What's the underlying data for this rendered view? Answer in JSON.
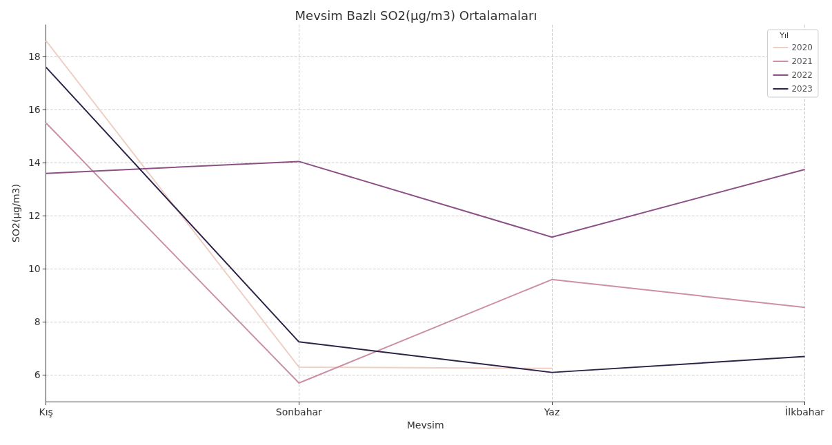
{
  "chart_data": {
    "type": "line",
    "title": "Mevsim Bazlı SO2(µg/m3) Ortalamaları",
    "xlabel": "Mevsim",
    "ylabel": "SO2(µg/m3)",
    "legend_title": "Yıl",
    "categories": [
      "Kış",
      "Sonbahar",
      "Yaz",
      "İlkbahar"
    ],
    "series": [
      {
        "name": "2020",
        "color": "#efcfc4",
        "values": [
          18.6,
          6.3,
          6.25,
          null
        ]
      },
      {
        "name": "2021",
        "color": "#cc8fa4",
        "values": [
          15.5,
          5.7,
          9.6,
          8.55
        ]
      },
      {
        "name": "2022",
        "color": "#8b5186",
        "values": [
          13.6,
          14.05,
          11.2,
          13.75
        ]
      },
      {
        "name": "2023",
        "color": "#2e2249",
        "values": [
          17.6,
          7.25,
          6.1,
          6.7
        ]
      }
    ],
    "ylim": [
      5,
      19.2
    ],
    "yticks": [
      6,
      8,
      10,
      12,
      14,
      16,
      18
    ],
    "grid": true,
    "legend": "top right",
    "marker": "none",
    "line_style": "solid"
  }
}
